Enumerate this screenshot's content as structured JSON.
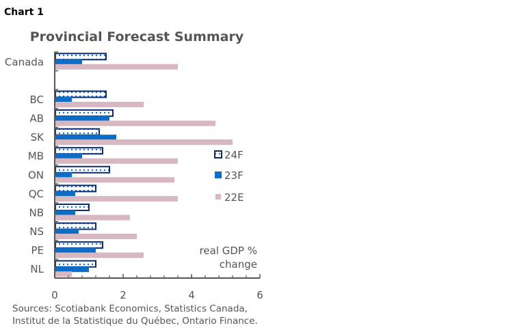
{
  "header": {
    "chart_label": "Chart 1"
  },
  "chart_data": {
    "type": "bar",
    "orientation": "horizontal",
    "title": "Provincial Forecast Summary",
    "categories": [
      "Canada",
      "",
      "BC",
      "AB",
      "SK",
      "MB",
      "ON",
      "QC",
      "NB",
      "NS",
      "PE",
      "NL"
    ],
    "series": [
      {
        "name": "24F",
        "color": "#0b2a6f",
        "pattern": "dotted",
        "values": [
          1.5,
          null,
          1.5,
          1.7,
          1.3,
          1.4,
          1.6,
          1.2,
          1.0,
          1.2,
          1.4,
          1.2
        ]
      },
      {
        "name": "23F",
        "color": "#0a6ec8",
        "values": [
          0.8,
          null,
          0.5,
          1.6,
          1.8,
          0.8,
          0.5,
          0.6,
          0.6,
          0.7,
          1.2,
          1.0
        ]
      },
      {
        "name": "22E",
        "color": "#d7b8c0",
        "values": [
          3.6,
          null,
          2.6,
          4.7,
          5.2,
          3.6,
          3.5,
          3.6,
          2.2,
          2.4,
          2.6,
          0.5
        ]
      }
    ],
    "xlim": [
      0,
      6
    ],
    "xticks": [
      "0",
      "2",
      "4",
      "6"
    ],
    "annotation": [
      "real GDP %",
      "change"
    ],
    "legend_position": "right",
    "grid": false
  },
  "footer": {
    "source_lines": [
      "Sources: Scotiabank Economics, Statistics Canada,",
      "Institut de la Statistique du Québec, Ontario Finance."
    ]
  }
}
